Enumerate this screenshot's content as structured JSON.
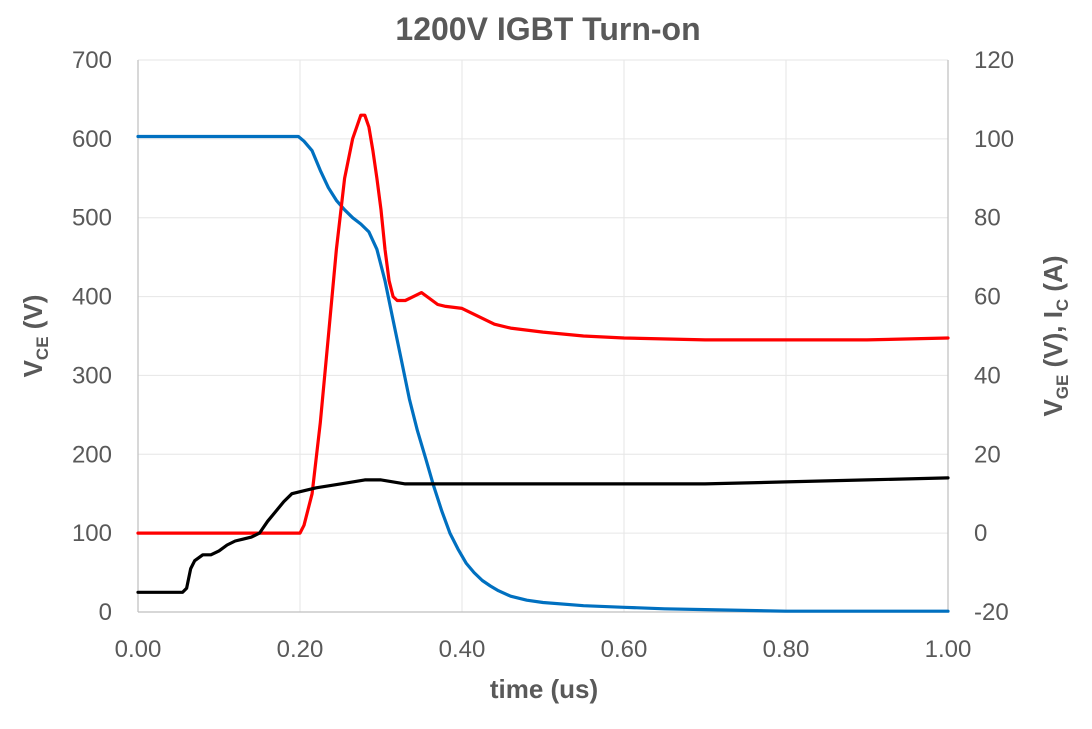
{
  "chart_data": {
    "type": "line",
    "title": "1200V IGBT Turn-on",
    "xlabel": "time (us)",
    "ylabel_left": {
      "main": "V",
      "sub": "CE",
      "rest": " (V)"
    },
    "ylabel_right": {
      "p1": "V",
      "s1": "GE",
      "p2": " (V), I",
      "s2": "C",
      "p3": "  (A)"
    },
    "xlim": [
      0,
      1.0
    ],
    "ylim_left": [
      0,
      700
    ],
    "ylim_right": [
      -20,
      120
    ],
    "x_ticks": [
      "0.00",
      "0.20",
      "0.40",
      "0.60",
      "0.80",
      "1.00"
    ],
    "y_left_ticks": [
      "0",
      "100",
      "200",
      "300",
      "400",
      "500",
      "600",
      "700"
    ],
    "y_right_ticks": [
      "-20",
      "0",
      "20",
      "40",
      "60",
      "80",
      "100",
      "120"
    ],
    "grid": true,
    "legend": "none",
    "series": [
      {
        "color": "#0070C0",
        "axis": "left",
        "x": [
          0.0,
          0.05,
          0.1,
          0.15,
          0.18,
          0.198,
          0.205,
          0.215,
          0.225,
          0.235,
          0.245,
          0.255,
          0.265,
          0.275,
          0.285,
          0.295,
          0.305,
          0.315,
          0.325,
          0.335,
          0.345,
          0.355,
          0.365,
          0.375,
          0.385,
          0.395,
          0.405,
          0.415,
          0.425,
          0.435,
          0.445,
          0.46,
          0.48,
          0.5,
          0.55,
          0.6,
          0.65,
          0.7,
          0.8,
          0.9,
          1.0
        ],
        "y": [
          603,
          603,
          603,
          603,
          603,
          603,
          597,
          585,
          560,
          538,
          522,
          510,
          500,
          492,
          482,
          460,
          420,
          370,
          320,
          270,
          230,
          195,
          160,
          128,
          100,
          80,
          62,
          50,
          40,
          33,
          27,
          20,
          15,
          12,
          8,
          6,
          4,
          3,
          1,
          1,
          1
        ]
      },
      {
        "color": "#FF0000",
        "axis": "right",
        "x": [
          0.0,
          0.1,
          0.15,
          0.2,
          0.205,
          0.215,
          0.225,
          0.235,
          0.245,
          0.255,
          0.265,
          0.275,
          0.28,
          0.285,
          0.29,
          0.295,
          0.3,
          0.305,
          0.31,
          0.315,
          0.32,
          0.33,
          0.34,
          0.35,
          0.36,
          0.37,
          0.38,
          0.4,
          0.42,
          0.44,
          0.46,
          0.5,
          0.55,
          0.6,
          0.7,
          0.8,
          0.9,
          1.0
        ],
        "y": [
          0,
          0,
          0,
          0,
          2,
          10,
          28,
          50,
          72,
          90,
          100,
          106,
          106,
          103,
          97,
          90,
          82,
          72,
          64,
          60,
          59,
          59,
          60,
          61,
          59.5,
          58,
          57.5,
          57,
          55,
          53,
          52,
          51,
          50,
          49.5,
          49,
          49,
          49,
          49.5
        ]
      },
      {
        "color": "#000000",
        "axis": "right",
        "x": [
          0.0,
          0.055,
          0.06,
          0.065,
          0.07,
          0.08,
          0.09,
          0.1,
          0.11,
          0.12,
          0.13,
          0.14,
          0.15,
          0.16,
          0.17,
          0.18,
          0.19,
          0.2,
          0.22,
          0.25,
          0.28,
          0.3,
          0.33,
          0.36,
          0.4,
          0.5,
          0.6,
          0.7,
          0.8,
          0.9,
          1.0
        ],
        "y": [
          -15,
          -15,
          -14,
          -9,
          -7,
          -5.5,
          -5.5,
          -4.5,
          -3,
          -2,
          -1.5,
          -1,
          0,
          3,
          5.5,
          8,
          10,
          10.5,
          11.5,
          12.5,
          13.5,
          13.5,
          12.5,
          12.5,
          12.5,
          12.5,
          12.5,
          12.5,
          13,
          13.5,
          14
        ]
      }
    ]
  }
}
